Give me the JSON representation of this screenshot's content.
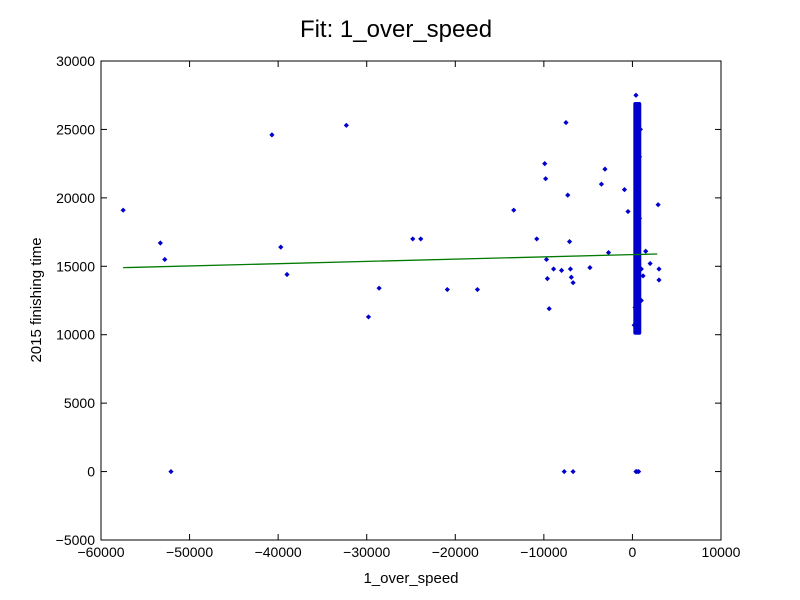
{
  "chart_data": {
    "type": "scatter",
    "title": "Fit: 1_over_speed",
    "xlabel": "1_over_speed",
    "ylabel": "2015 finishing time",
    "xlim": [
      -60000,
      10000
    ],
    "ylim": [
      -5000,
      30000
    ],
    "xticks": [
      -60000,
      -50000,
      -40000,
      -30000,
      -20000,
      -10000,
      0,
      10000
    ],
    "yticks": [
      -5000,
      0,
      5000,
      10000,
      15000,
      20000,
      25000,
      30000
    ],
    "grid": false,
    "colors": {
      "points": "#0000cc",
      "fit_line": "#007a00"
    },
    "series": [
      {
        "kind": "points",
        "x": [
          -57500,
          -53300,
          -52800,
          -52100,
          -40700,
          -39700,
          -39000,
          -32300,
          -29800,
          -28600,
          -24800,
          -23900,
          -20900,
          -17500,
          -13400,
          -10800,
          -9900,
          -9800,
          -9700,
          -9600,
          -9400,
          -8900,
          -8000,
          -7700,
          -7500,
          -7300,
          -7100,
          -7000,
          -6900,
          -6700,
          -6700,
          -4800,
          -3500,
          -3100,
          -2700,
          -900,
          -500,
          1000,
          1500,
          2000,
          2900,
          3000,
          3000,
          200,
          300,
          400,
          500,
          600,
          700,
          800,
          900,
          400,
          600,
          800,
          1000,
          1200,
          400,
          500,
          700
        ],
        "y": [
          19100,
          16700,
          15500,
          0,
          24600,
          16400,
          14400,
          25300,
          11300,
          13400,
          17000,
          17000,
          13300,
          13300,
          19100,
          17000,
          22500,
          21400,
          15500,
          14100,
          11900,
          14800,
          14700,
          0,
          25500,
          20200,
          16800,
          14800,
          14200,
          13800,
          0,
          14900,
          21000,
          22100,
          16000,
          20600,
          19000,
          14800,
          16100,
          15200,
          19500,
          14800,
          14000,
          10700,
          12000,
          13500,
          15000,
          17500,
          20000,
          23000,
          25000,
          27500,
          26400,
          18500,
          12500,
          14300,
          0,
          0,
          0
        ]
      },
      {
        "kind": "fit_line",
        "x": [
          -57500,
          2800
        ],
        "y": [
          14900,
          15900
        ]
      }
    ],
    "dense_band": {
      "x_min": 100,
      "x_max": 1000,
      "y_min": 10000,
      "y_max": 27000
    }
  }
}
